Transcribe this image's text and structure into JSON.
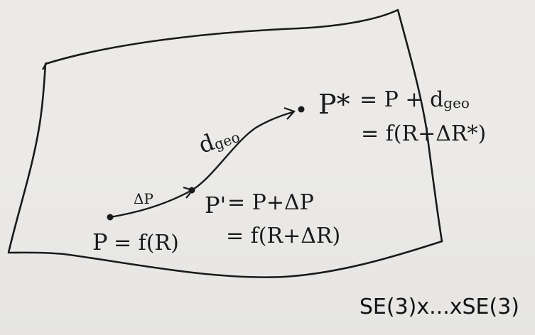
{
  "diagram": {
    "manifold_label": "SE(3)x...xSE(3)",
    "points": {
      "p": {
        "label": "P",
        "formula": "= f(R)"
      },
      "p_prime": {
        "label": "P'",
        "formula_line1": "= P+ΔP",
        "formula_line2": "= f(R+ΔR)"
      },
      "p_star": {
        "label": "P*",
        "formula_line1": "= P + d",
        "formula_line1_sub": "geo",
        "formula_line2": "= f(R+ΔR*)"
      }
    },
    "edges": {
      "delta_p": "ΔP",
      "d_geo": "d",
      "d_geo_sub": "geo"
    },
    "ink_color": "#1a1a1a",
    "paper_color": "#ecebe9"
  }
}
